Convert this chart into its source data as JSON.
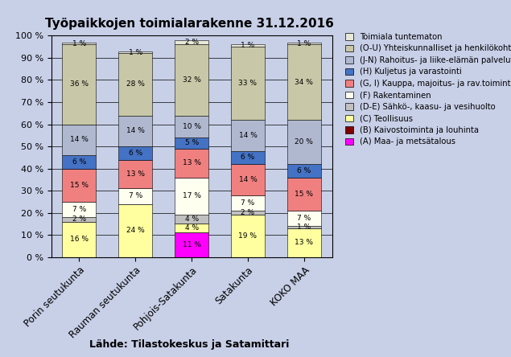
{
  "title": "Työpaikkojen toimialarakenne 31.12.2016",
  "categories": [
    "Porin seutukunta",
    "Rauman seutukunta",
    "Pohjois-Satakunta",
    "Satakunta",
    "KOKO MAA"
  ],
  "source": "Lähde: Tilastokeskus ja Satamittari",
  "series": [
    {
      "label": "(A) Maa- ja metsätalous",
      "color": "#FF00FF",
      "values": [
        0,
        0,
        11,
        0,
        0
      ]
    },
    {
      "label": "(B) Kaivostoiminta ja louhinta",
      "color": "#800000",
      "values": [
        0,
        0,
        0,
        0,
        0
      ]
    },
    {
      "label": "(C) Teollisuus",
      "color": "#FFFFA0",
      "values": [
        16,
        24,
        4,
        19,
        13
      ]
    },
    {
      "label": "(D-E) Sähkö-, kaasu- ja vesihuolto",
      "color": "#C0C0C0",
      "values": [
        2,
        0,
        4,
        2,
        1
      ]
    },
    {
      "label": "(F) Rakentaminen",
      "color": "#FFFFF0",
      "values": [
        7,
        7,
        17,
        7,
        7
      ]
    },
    {
      "label": "(G, I) Kauppa, majoitus- ja rav.toiminta",
      "color": "#F08080",
      "values": [
        15,
        13,
        13,
        14,
        15
      ]
    },
    {
      "label": "(H) Kuljetus ja varastointi",
      "color": "#4472C4",
      "values": [
        6,
        6,
        5,
        6,
        6
      ]
    },
    {
      "label": "(J-N) Rahoitus- ja liike-elämän palvelut",
      "color": "#B0B8D0",
      "values": [
        14,
        14,
        10,
        14,
        20
      ]
    },
    {
      "label": "(O-U) Yhteiskunnalliset ja\nhenkilökohtaiset palvelut",
      "color": "#C8C8A8",
      "values": [
        36,
        28,
        32,
        33,
        34
      ]
    },
    {
      "label": "Toimiala tuntematon",
      "color": "#E8E8D8",
      "values": [
        1,
        1,
        2,
        1,
        1
      ]
    }
  ],
  "ylim": [
    0,
    100
  ],
  "yticks": [
    0,
    10,
    20,
    30,
    40,
    50,
    60,
    70,
    80,
    90,
    100
  ],
  "ytick_labels": [
    "0 %",
    "10 %",
    "20 %",
    "30 %",
    "40 %",
    "50 %",
    "60 %",
    "70 %",
    "80 %",
    "90 %",
    "100 %"
  ],
  "bg_color": "#C8D0E8",
  "plot_bg_color": "#C8D0E8"
}
